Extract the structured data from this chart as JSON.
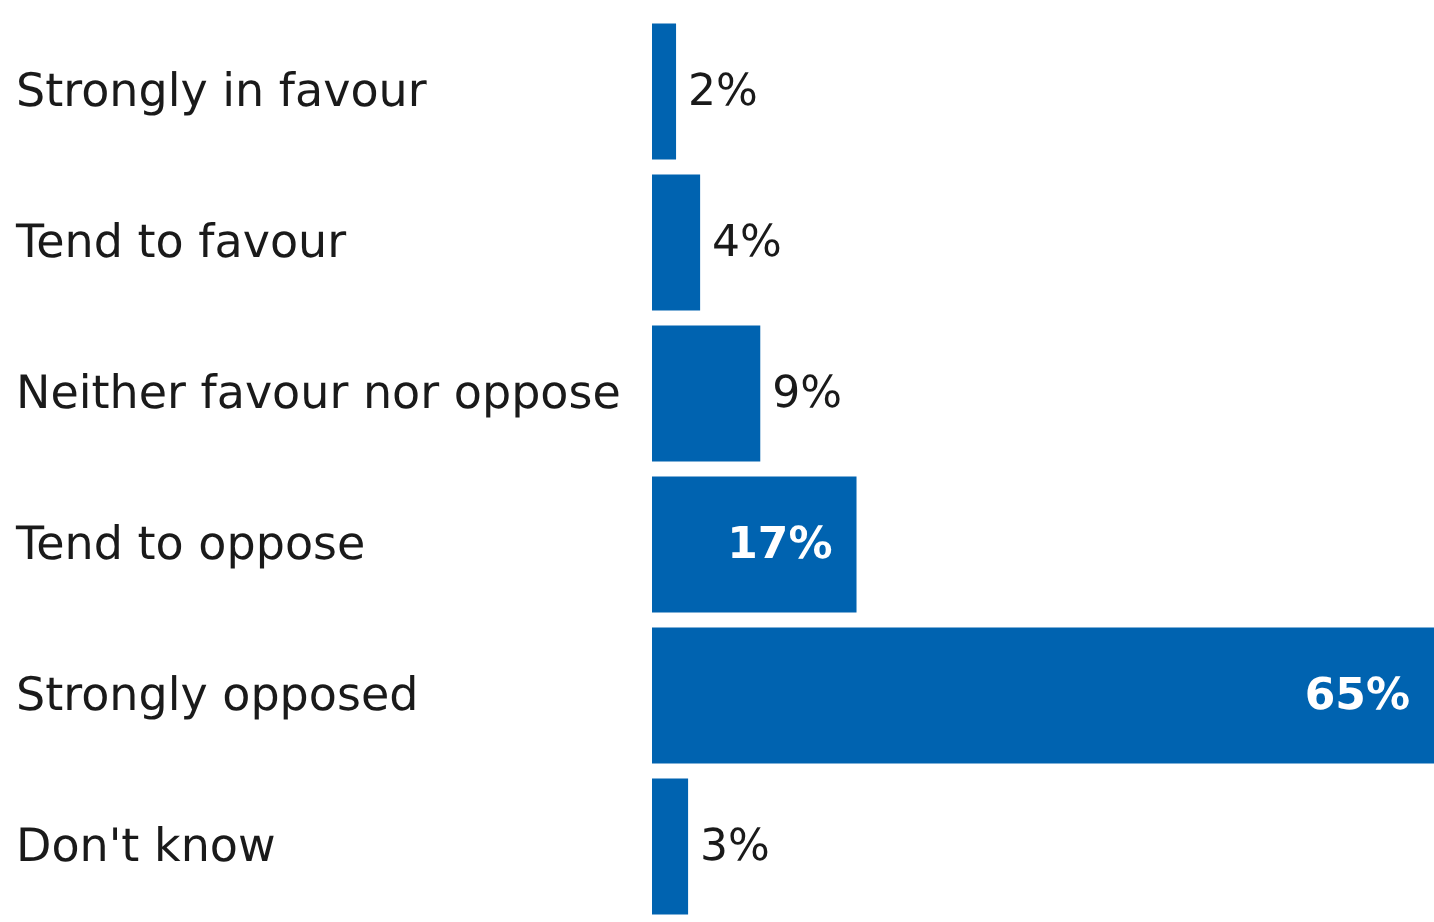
{
  "chart_data": {
    "type": "bar",
    "orientation": "horizontal",
    "categories": [
      "Strongly in favour",
      "Tend to favour",
      "Neither favour nor oppose",
      "Tend to oppose",
      "Strongly opposed",
      "Don't know"
    ],
    "values": [
      2,
      4,
      9,
      17,
      65,
      3
    ],
    "color": "#0063b0",
    "value_labels": [
      "2%",
      "4%",
      "9%",
      "17%",
      "65%",
      "3%"
    ]
  }
}
